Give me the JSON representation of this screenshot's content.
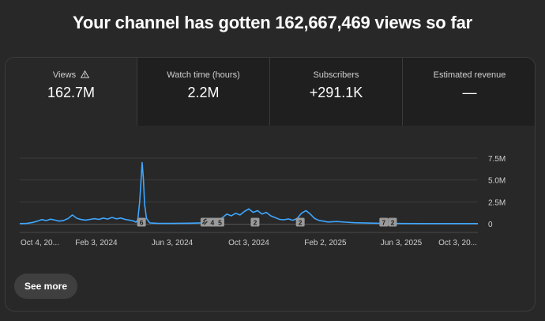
{
  "headline": "Your channel has gotten 162,667,469 views so far",
  "tabs": [
    {
      "label": "Views",
      "value": "162.7M",
      "active": true,
      "warning_icon": "warning-triangle-icon"
    },
    {
      "label": "Watch time (hours)",
      "value": "2.2M",
      "active": false
    },
    {
      "label": "Subscribers",
      "value": "+291.1K",
      "active": false
    },
    {
      "label": "Estimated revenue",
      "value": "—",
      "active": false
    }
  ],
  "chart_data": {
    "type": "line",
    "series": [
      {
        "color": "#3ea6ff",
        "points": [
          [
            "2023-10-04",
            20000
          ],
          [
            "2023-10-15",
            40000
          ],
          [
            "2023-10-25",
            150000
          ],
          [
            "2023-11-01",
            300000
          ],
          [
            "2023-11-08",
            480000
          ],
          [
            "2023-11-15",
            360000
          ],
          [
            "2023-11-22",
            520000
          ],
          [
            "2023-11-29",
            420000
          ],
          [
            "2023-12-06",
            300000
          ],
          [
            "2023-12-13",
            380000
          ],
          [
            "2023-12-20",
            600000
          ],
          [
            "2023-12-27",
            1000000
          ],
          [
            "2024-01-03",
            620000
          ],
          [
            "2024-01-10",
            480000
          ],
          [
            "2024-01-17",
            420000
          ],
          [
            "2024-01-24",
            500000
          ],
          [
            "2024-01-31",
            580000
          ],
          [
            "2024-02-07",
            500000
          ],
          [
            "2024-02-14",
            650000
          ],
          [
            "2024-02-21",
            530000
          ],
          [
            "2024-02-28",
            720000
          ],
          [
            "2024-03-06",
            560000
          ],
          [
            "2024-03-13",
            650000
          ],
          [
            "2024-03-20",
            500000
          ],
          [
            "2024-03-27",
            420000
          ],
          [
            "2024-04-03",
            300000
          ],
          [
            "2024-04-06",
            180000
          ],
          [
            "2024-04-09",
            400000
          ],
          [
            "2024-04-12",
            2500000
          ],
          [
            "2024-04-14",
            4500000
          ],
          [
            "2024-04-16",
            7000000
          ],
          [
            "2024-04-18",
            5200000
          ],
          [
            "2024-04-20",
            2200000
          ],
          [
            "2024-04-23",
            600000
          ],
          [
            "2024-04-28",
            100000
          ],
          [
            "2024-05-10",
            50000
          ],
          [
            "2024-06-01",
            40000
          ],
          [
            "2024-07-01",
            60000
          ],
          [
            "2024-07-20",
            100000
          ],
          [
            "2024-08-01",
            150000
          ],
          [
            "2024-08-08",
            200000
          ],
          [
            "2024-08-15",
            450000
          ],
          [
            "2024-08-22",
            700000
          ],
          [
            "2024-08-29",
            1100000
          ],
          [
            "2024-09-05",
            900000
          ],
          [
            "2024-09-12",
            1200000
          ],
          [
            "2024-09-19",
            1000000
          ],
          [
            "2024-09-26",
            1400000
          ],
          [
            "2024-10-03",
            1700000
          ],
          [
            "2024-10-10",
            1300000
          ],
          [
            "2024-10-17",
            1500000
          ],
          [
            "2024-10-24",
            1100000
          ],
          [
            "2024-10-31",
            1300000
          ],
          [
            "2024-11-07",
            900000
          ],
          [
            "2024-11-14",
            700000
          ],
          [
            "2024-11-21",
            500000
          ],
          [
            "2024-11-28",
            450000
          ],
          [
            "2024-12-05",
            550000
          ],
          [
            "2024-12-12",
            400000
          ],
          [
            "2024-12-19",
            600000
          ],
          [
            "2024-12-26",
            1200000
          ],
          [
            "2025-01-02",
            1500000
          ],
          [
            "2025-01-09",
            1100000
          ],
          [
            "2025-01-16",
            600000
          ],
          [
            "2025-01-23",
            380000
          ],
          [
            "2025-01-30",
            300000
          ],
          [
            "2025-02-06",
            200000
          ],
          [
            "2025-02-20",
            250000
          ],
          [
            "2025-03-06",
            180000
          ],
          [
            "2025-03-20",
            120000
          ],
          [
            "2025-04-10",
            80000
          ],
          [
            "2025-05-01",
            50000
          ],
          [
            "2025-06-01",
            30000
          ],
          [
            "2025-07-01",
            20000
          ],
          [
            "2025-08-01",
            20000
          ],
          [
            "2025-09-01",
            15000
          ],
          [
            "2025-10-03",
            15000
          ]
        ]
      }
    ],
    "x_range": [
      "2023-10-04",
      "2025-10-03"
    ],
    "x_ticks": [
      {
        "date": "2023-10-04",
        "label": "Oct 4, 20..."
      },
      {
        "date": "2024-02-03",
        "label": "Feb 3, 2024"
      },
      {
        "date": "2024-06-03",
        "label": "Jun 3, 2024"
      },
      {
        "date": "2024-10-03",
        "label": "Oct 3, 2024"
      },
      {
        "date": "2025-02-02",
        "label": "Feb 2, 2025"
      },
      {
        "date": "2025-06-03",
        "label": "Jun 3, 2025"
      },
      {
        "date": "2025-10-03",
        "label": "Oct 3, 20..."
      }
    ],
    "y_range": [
      0,
      7500000
    ],
    "y_ticks": [
      {
        "value": 0,
        "label": "0"
      },
      {
        "value": 2500000,
        "label": "2.5M"
      },
      {
        "value": 5000000,
        "label": "5.0M"
      },
      {
        "value": 7500000,
        "label": "7.5M"
      }
    ],
    "grid": true,
    "markers": [
      {
        "date": "2024-04-15",
        "label": "6"
      },
      {
        "date": "2024-07-25",
        "label": "",
        "icon": "link-icon"
      },
      {
        "date": "2024-08-06",
        "label": "4"
      },
      {
        "date": "2024-08-18",
        "label": "5"
      },
      {
        "date": "2024-10-13",
        "label": "2"
      },
      {
        "date": "2024-12-24",
        "label": "2"
      },
      {
        "date": "2025-05-06",
        "label": "7"
      },
      {
        "date": "2025-05-20",
        "label": "2"
      }
    ]
  },
  "see_more": "See more"
}
